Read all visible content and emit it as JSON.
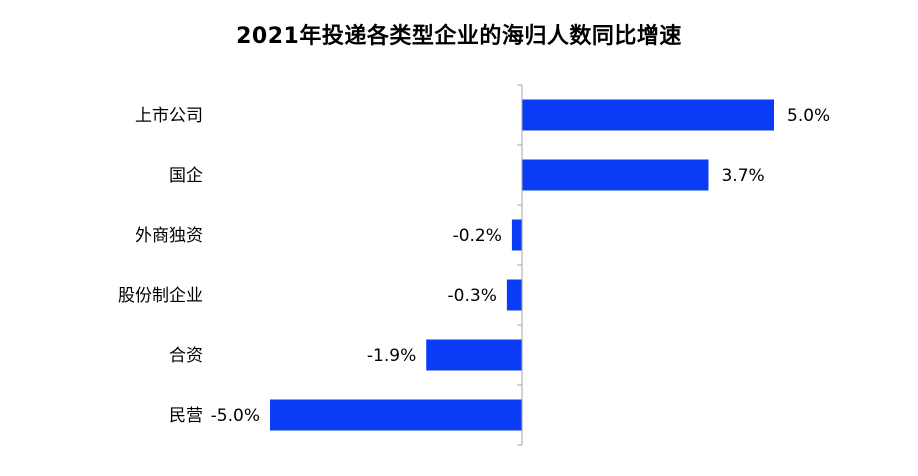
{
  "chart_data": {
    "type": "bar",
    "orientation": "horizontal",
    "title": "2021年投递各类型企业的海归人数同比增速",
    "categories": [
      "上市公司",
      "国企",
      "外商独资",
      "股份制企业",
      "合资",
      "民营"
    ],
    "values": [
      5.0,
      3.7,
      -0.2,
      -0.3,
      -1.9,
      -5.0
    ],
    "value_labels": [
      "5.0%",
      "3.7%",
      "-0.2%",
      "-0.3%",
      "-1.9%",
      "-5.0%"
    ],
    "xlabel": "",
    "ylabel": "",
    "xlim": [
      -5.0,
      5.0
    ],
    "grid": false,
    "legend": "none",
    "bar_color": "#0a3cf5",
    "axis_color": "#a6a6a6"
  }
}
